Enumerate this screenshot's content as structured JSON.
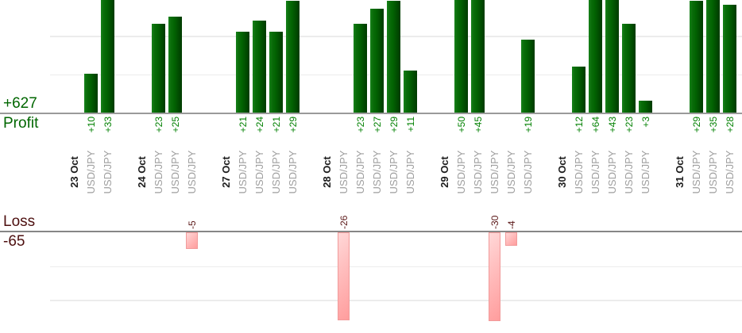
{
  "summary": {
    "profit_total": "+627",
    "profit_label": "Profit",
    "loss_total": "-65",
    "loss_label": "Loss"
  },
  "colors": {
    "profit_summary_text": "#006600",
    "profit_value_text": "#008000",
    "loss_summary_text": "#4d0f0f",
    "loss_value_text": "#5a1616",
    "bar_green_light": "#17821a",
    "bar_green_dark": "#003b00",
    "bar_pink_fill": "#ffb0b0",
    "bar_pink_border": "#f19b9b",
    "date_label_text": "#1c1c1c",
    "instrument_label_text": "#9e9e9e",
    "axis_line": "#8f8f8f",
    "gridline": "#ececec"
  },
  "chart_data": {
    "type": "bar",
    "description": "Daily trade results split into an upper Profit bar chart and a lower Loss bar chart sharing one x-axis of trades grouped by date",
    "profit_axis": {
      "label": "Profit",
      "total": "+627",
      "visible_range": [
        0,
        30
      ],
      "gridline_step": 10
    },
    "loss_axis": {
      "label": "Loss",
      "total": "-65",
      "visible_range": [
        0,
        -30
      ],
      "gridline_step": 10
    },
    "grid": true,
    "groups": [
      {
        "date": "23 Oct",
        "trades": [
          {
            "instrument": "USD/JPY",
            "value": 10,
            "label": "+10"
          },
          {
            "instrument": "USD/JPY",
            "value": 33,
            "label": "+33"
          }
        ]
      },
      {
        "date": "24 Oct",
        "trades": [
          {
            "instrument": "USD/JPY",
            "value": 23,
            "label": "+23"
          },
          {
            "instrument": "USD/JPY",
            "value": 25,
            "label": "+25"
          },
          {
            "instrument": "USD/JPY",
            "value": -5,
            "label": "-5"
          }
        ]
      },
      {
        "date": "27 Oct",
        "trades": [
          {
            "instrument": "USD/JPY",
            "value": 21,
            "label": "+21"
          },
          {
            "instrument": "USD/JPY",
            "value": 24,
            "label": "+24"
          },
          {
            "instrument": "USD/JPY",
            "value": 21,
            "label": "+21"
          },
          {
            "instrument": "USD/JPY",
            "value": 29,
            "label": "+29"
          }
        ]
      },
      {
        "date": "28 Oct",
        "trades": [
          {
            "instrument": "USD/JPY",
            "value": -26,
            "label": "-26"
          },
          {
            "instrument": "USD/JPY",
            "value": 23,
            "label": "+23"
          },
          {
            "instrument": "USD/JPY",
            "value": 27,
            "label": "+27"
          },
          {
            "instrument": "USD/JPY",
            "value": 29,
            "label": "+29"
          },
          {
            "instrument": "USD/JPY",
            "value": 11,
            "label": "+11"
          }
        ]
      },
      {
        "date": "29 Oct",
        "trades": [
          {
            "instrument": "USD/JPY",
            "value": 50,
            "label": "+50"
          },
          {
            "instrument": "USD/JPY",
            "value": 45,
            "label": "+45"
          },
          {
            "instrument": "USD/JPY",
            "value": -30,
            "label": "-30"
          },
          {
            "instrument": "USD/JPY",
            "value": -4,
            "label": "-4"
          },
          {
            "instrument": "USD/JPY",
            "value": 19,
            "label": "+19"
          }
        ]
      },
      {
        "date": "30 Oct",
        "trades": [
          {
            "instrument": "USD/JPY",
            "value": 12,
            "label": "+12"
          },
          {
            "instrument": "USD/JPY",
            "value": 64,
            "label": "+64"
          },
          {
            "instrument": "USD/JPY",
            "value": 43,
            "label": "+43"
          },
          {
            "instrument": "USD/JPY",
            "value": 23,
            "label": "+23"
          },
          {
            "instrument": "USD/JPY",
            "value": 3,
            "label": "+3"
          }
        ]
      },
      {
        "date": "31 Oct",
        "trades": [
          {
            "instrument": "USD/JPY",
            "value": 29,
            "label": "+29"
          },
          {
            "instrument": "USD/JPY",
            "value": 35,
            "label": "+35"
          },
          {
            "instrument": "USD/JPY",
            "value": 28,
            "label": "+28"
          }
        ]
      }
    ]
  }
}
